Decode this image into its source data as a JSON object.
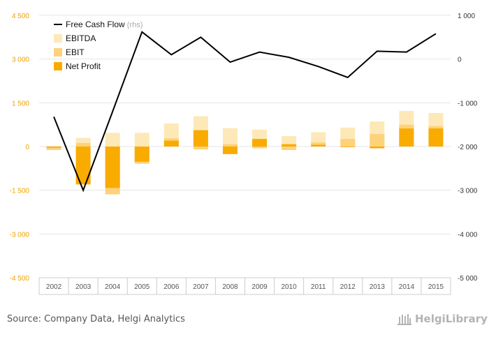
{
  "chart_data": {
    "type": "bar",
    "categories": [
      "2002",
      "2003",
      "2004",
      "2005",
      "2006",
      "2007",
      "2008",
      "2009",
      "2010",
      "2011",
      "2012",
      "2013",
      "2014",
      "2015"
    ],
    "series": [
      {
        "name": "EBITDA",
        "kind": "bar",
        "axis": "left",
        "color": "#fde9b8",
        "values": [
          -70,
          300,
          470,
          470,
          790,
          1040,
          630,
          580,
          360,
          490,
          650,
          860,
          1220,
          1150
        ]
      },
      {
        "name": "EBIT",
        "kind": "bar",
        "axis": "left",
        "color": "#fdd27a",
        "values": [
          -120,
          120,
          -1640,
          -590,
          280,
          -100,
          80,
          -60,
          -120,
          140,
          260,
          430,
          750,
          700
        ]
      },
      {
        "name": "Net Profit",
        "kind": "bar",
        "axis": "left",
        "color": "#f9ab00",
        "values": [
          -40,
          -1300,
          -1420,
          -520,
          200,
          560,
          -260,
          260,
          80,
          60,
          -20,
          -60,
          620,
          620
        ]
      },
      {
        "name": "Free Cash Flow",
        "kind": "line",
        "axis": "right",
        "color": "#000000",
        "values": [
          -1320,
          -3000,
          -1200,
          620,
          100,
          500,
          -70,
          160,
          40,
          -170,
          -420,
          180,
          160,
          580
        ]
      }
    ],
    "left_axis": {
      "ylim": [
        -4500,
        4500
      ],
      "ticks": [
        4500,
        3000,
        1500,
        0,
        -1500,
        -3000,
        -4500
      ],
      "tick_labels": [
        "4 500",
        "3 000",
        "1 500",
        "0",
        "-1 500",
        "-3 000",
        "-4 500"
      ]
    },
    "right_axis": {
      "ylim": [
        -5000,
        1000
      ],
      "ticks": [
        1000,
        0,
        -1000,
        -2000,
        -3000,
        -4000,
        -5000
      ],
      "tick_labels": [
        "1 000",
        "0",
        "-1 000",
        "-2 000",
        "-3 000",
        "-4 000",
        "-5 000"
      ]
    },
    "legend": [
      {
        "label": "Free Cash Flow",
        "suffix": " (rhs)",
        "swatch": "line",
        "color": "#000000"
      },
      {
        "label": "EBITDA",
        "suffix": "",
        "swatch": "box",
        "color": "#fde9b8"
      },
      {
        "label": "EBIT",
        "suffix": "",
        "swatch": "box",
        "color": "#fdd27a"
      },
      {
        "label": "Net Profit",
        "suffix": "",
        "swatch": "box",
        "color": "#f9ab00"
      }
    ],
    "legend_position": "top-left",
    "grid": true,
    "colors": {
      "left_tick": "#f0a000",
      "right_tick": "#333333",
      "grid": "#e6e6e6",
      "xtick": "#555555"
    }
  },
  "footer": {
    "source": "Source: Company Data, Helgi Analytics",
    "brand": "HelgiLibrary",
    "brand_icon": "building-icon"
  }
}
